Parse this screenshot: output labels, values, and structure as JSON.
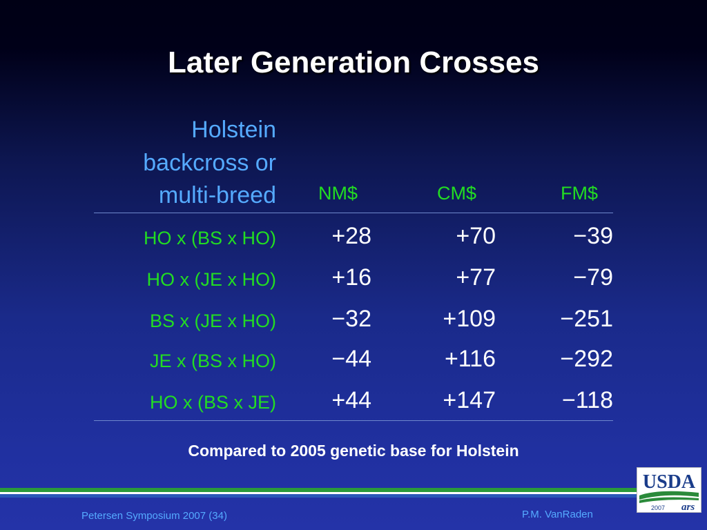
{
  "slide": {
    "title": "Later Generation Crosses",
    "row_header": [
      "Holstein",
      "backcross or",
      "multi-breed"
    ],
    "columns": [
      "NM$",
      "CM$",
      "FM$"
    ],
    "rows": [
      {
        "label": "HO x (BS x HO)",
        "values": [
          "+28",
          "+70",
          "−39"
        ]
      },
      {
        "label": "HO x (JE x HO)",
        "values": [
          "+16",
          "+77",
          "−79"
        ]
      },
      {
        "label": "BS x (JE x HO)",
        "values": [
          "−32",
          "+109",
          "−251"
        ]
      },
      {
        "label": "JE x (BS x HO)",
        "values": [
          "−44",
          "+116",
          "−292"
        ]
      },
      {
        "label": "HO x (BS x JE)",
        "values": [
          "+44",
          "+147",
          "−118"
        ]
      }
    ],
    "note": "Compared to 2005 genetic base for Holstein"
  },
  "footer": {
    "left": "Petersen Symposium 2007 (34)",
    "right": "P.M. VanRaden"
  },
  "logo": {
    "text": "USDA",
    "year": "2007",
    "mark": "ars"
  },
  "colors": {
    "title": "#ffffff",
    "header_blue": "#55aaff",
    "green": "#22dd22",
    "values": "#ffffff"
  }
}
